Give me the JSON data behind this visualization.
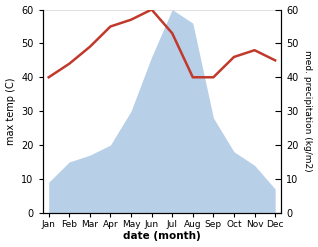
{
  "months": [
    "Jan",
    "Feb",
    "Mar",
    "Apr",
    "May",
    "Jun",
    "Jul",
    "Aug",
    "Sep",
    "Oct",
    "Nov",
    "Dec"
  ],
  "temperature": [
    40,
    44,
    49,
    55,
    57,
    60,
    53,
    40,
    40,
    46,
    48,
    45
  ],
  "precipitation": [
    9,
    15,
    17,
    20,
    30,
    46,
    60,
    56,
    28,
    18,
    14,
    7
  ],
  "temp_color": "#c0392b",
  "precip_color": "#b8cfe8",
  "ylabel_left": "max temp (C)",
  "ylabel_right": "med. precipitation (kg/m2)",
  "xlabel": "date (month)",
  "ylim": [
    0,
    60
  ],
  "yticks": [
    0,
    10,
    20,
    30,
    40,
    50,
    60
  ],
  "temp_linewidth": 1.8,
  "background_color": "#ffffff"
}
